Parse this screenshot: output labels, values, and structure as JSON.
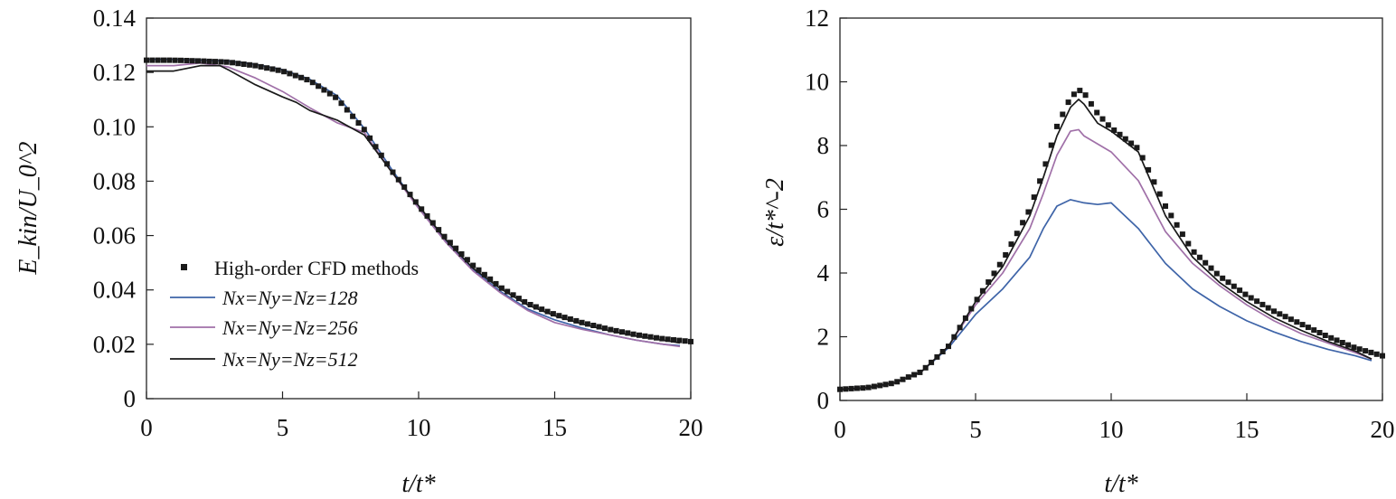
{
  "chart_data": [
    {
      "type": "line",
      "xlabel": "t/t*",
      "ylabel": "E_kin/U_0^2",
      "xlim": [
        0,
        20
      ],
      "ylim": [
        0,
        0.14
      ],
      "xticks": [
        "0",
        "5",
        "10",
        "15",
        "20"
      ],
      "yticks": [
        "0",
        "0.02",
        "0.04",
        "0.06",
        "0.08",
        "0.10",
        "0.12",
        "0.14"
      ],
      "grid": false,
      "legend_position": "lower-left",
      "series": [
        {
          "name": "High-order CFD methods",
          "marker": "square",
          "color": "#1a1a1a",
          "points": [
            [
              0,
              0.1245
            ],
            [
              1,
              0.1245
            ],
            [
              2,
              0.1242
            ],
            [
              3,
              0.1238
            ],
            [
              4,
              0.1225
            ],
            [
              5,
              0.1205
            ],
            [
              6,
              0.117
            ],
            [
              7,
              0.1105
            ],
            [
              8,
              0.099
            ],
            [
              9,
              0.084
            ],
            [
              10,
              0.071
            ],
            [
              11,
              0.059
            ],
            [
              12,
              0.049
            ],
            [
              13,
              0.041
            ],
            [
              14,
              0.035
            ],
            [
              15,
              0.031
            ],
            [
              16,
              0.028
            ],
            [
              17,
              0.0255
            ],
            [
              18,
              0.0235
            ],
            [
              19,
              0.022
            ],
            [
              20,
              0.021
            ]
          ]
        },
        {
          "name": "Nx=Ny=Nz=128",
          "color": "#3e64a8",
          "points": [
            [
              0,
              0.1248
            ],
            [
              1,
              0.1248
            ],
            [
              2,
              0.1245
            ],
            [
              3,
              0.1242
            ],
            [
              4,
              0.123
            ],
            [
              5,
              0.121
            ],
            [
              6,
              0.1175
            ],
            [
              7,
              0.1115
            ],
            [
              8,
              0.0995
            ],
            [
              9,
              0.0845
            ],
            [
              10,
              0.0705
            ],
            [
              11,
              0.058
            ],
            [
              12,
              0.0475
            ],
            [
              13,
              0.0395
            ],
            [
              14,
              0.033
            ],
            [
              15,
              0.029
            ],
            [
              16,
              0.026
            ],
            [
              17,
              0.0235
            ],
            [
              18,
              0.0215
            ],
            [
              19,
              0.02
            ],
            [
              19.6,
              0.0195
            ]
          ]
        },
        {
          "name": "Nx=Ny=Nz=256",
          "color": "#a070a8",
          "points": [
            [
              0,
              0.1225
            ],
            [
              1,
              0.1225
            ],
            [
              2,
              0.1235
            ],
            [
              3,
              0.122
            ],
            [
              4,
              0.118
            ],
            [
              5,
              0.113
            ],
            [
              6,
              0.107
            ],
            [
              7,
              0.1015
            ],
            [
              7.7,
              0.099
            ],
            [
              8,
              0.098
            ],
            [
              9,
              0.0835
            ],
            [
              10,
              0.07
            ],
            [
              11,
              0.0575
            ],
            [
              12,
              0.047
            ],
            [
              13,
              0.039
            ],
            [
              14,
              0.0325
            ],
            [
              15,
              0.028
            ],
            [
              16,
              0.0255
            ],
            [
              17,
              0.0235
            ],
            [
              18,
              0.0215
            ],
            [
              19,
              0.02
            ],
            [
              19.6,
              0.0192
            ]
          ]
        },
        {
          "name": "Nx=Ny=Nz=512",
          "color": "#1a1a1a",
          "points": [
            [
              0,
              0.1205
            ],
            [
              1,
              0.1205
            ],
            [
              2,
              0.1225
            ],
            [
              2.7,
              0.1225
            ],
            [
              3,
              0.121
            ],
            [
              4,
              0.1155
            ],
            [
              5,
              0.111
            ],
            [
              5.5,
              0.109
            ],
            [
              6,
              0.106
            ],
            [
              7,
              0.1025
            ],
            [
              8,
              0.097
            ],
            [
              9,
              0.0835
            ],
            [
              10,
              0.071
            ],
            [
              11,
              0.0585
            ],
            [
              12,
              0.048
            ],
            [
              13,
              0.0405
            ],
            [
              14,
              0.0345
            ],
            [
              15,
              0.0305
            ],
            [
              16,
              0.0275
            ],
            [
              17,
              0.025
            ],
            [
              18,
              0.023
            ],
            [
              19,
              0.0215
            ],
            [
              19.6,
              0.0205
            ]
          ]
        }
      ]
    },
    {
      "type": "line",
      "xlabel": "t/t*",
      "ylabel": "ε/t*^-2",
      "xlim": [
        0,
        20
      ],
      "ylim": [
        0,
        12
      ],
      "xticks": [
        "0",
        "5",
        "10",
        "15",
        "20"
      ],
      "yticks": [
        "0",
        "2",
        "4",
        "6",
        "8",
        "10",
        "12"
      ],
      "grid": false,
      "series": [
        {
          "name": "High-order CFD methods",
          "marker": "square",
          "color": "#1a1a1a",
          "points": [
            [
              0,
              0.35
            ],
            [
              1,
              0.4
            ],
            [
              2,
              0.55
            ],
            [
              3,
              0.9
            ],
            [
              4,
              1.7
            ],
            [
              5,
              3.1
            ],
            [
              6,
              4.4
            ],
            [
              7,
              6.0
            ],
            [
              7.5,
              7.2
            ],
            [
              8,
              8.6
            ],
            [
              8.5,
              9.5
            ],
            [
              8.8,
              9.75
            ],
            [
              9,
              9.65
            ],
            [
              9.5,
              9.0
            ],
            [
              10,
              8.55
            ],
            [
              11,
              7.9
            ],
            [
              12,
              6.1
            ],
            [
              13,
              4.7
            ],
            [
              14,
              3.9
            ],
            [
              15,
              3.3
            ],
            [
              16,
              2.8
            ],
            [
              17,
              2.4
            ],
            [
              18,
              2.0
            ],
            [
              19,
              1.65
            ],
            [
              20,
              1.4
            ]
          ]
        },
        {
          "name": "Nx=Ny=Nz=128",
          "color": "#3e64a8",
          "points": [
            [
              0,
              0.35
            ],
            [
              1,
              0.4
            ],
            [
              2,
              0.55
            ],
            [
              3,
              0.9
            ],
            [
              4,
              1.65
            ],
            [
              5,
              2.7
            ],
            [
              6,
              3.5
            ],
            [
              7,
              4.5
            ],
            [
              7.5,
              5.4
            ],
            [
              8,
              6.1
            ],
            [
              8.5,
              6.3
            ],
            [
              9,
              6.2
            ],
            [
              9.5,
              6.15
            ],
            [
              10,
              6.2
            ],
            [
              11,
              5.4
            ],
            [
              12,
              4.3
            ],
            [
              13,
              3.5
            ],
            [
              14,
              2.95
            ],
            [
              15,
              2.5
            ],
            [
              16,
              2.15
            ],
            [
              17,
              1.85
            ],
            [
              18,
              1.6
            ],
            [
              19,
              1.4
            ],
            [
              19.6,
              1.25
            ]
          ]
        },
        {
          "name": "Nx=Ny=Nz=256",
          "color": "#a070a8",
          "points": [
            [
              0,
              0.35
            ],
            [
              1,
              0.4
            ],
            [
              2,
              0.55
            ],
            [
              3,
              0.9
            ],
            [
              4,
              1.7
            ],
            [
              5,
              3.0
            ],
            [
              6,
              4.0
            ],
            [
              7,
              5.4
            ],
            [
              7.5,
              6.5
            ],
            [
              8,
              7.7
            ],
            [
              8.5,
              8.45
            ],
            [
              8.8,
              8.5
            ],
            [
              9,
              8.3
            ],
            [
              10,
              7.8
            ],
            [
              11,
              6.9
            ],
            [
              12,
              5.3
            ],
            [
              13,
              4.3
            ],
            [
              14,
              3.6
            ],
            [
              15,
              3.0
            ],
            [
              16,
              2.5
            ],
            [
              17,
              2.1
            ],
            [
              18,
              1.8
            ],
            [
              19,
              1.5
            ],
            [
              19.6,
              1.3
            ]
          ]
        },
        {
          "name": "Nx=Ny=Nz=512",
          "color": "#1a1a1a",
          "points": [
            [
              0,
              0.35
            ],
            [
              1,
              0.4
            ],
            [
              2,
              0.55
            ],
            [
              3,
              0.9
            ],
            [
              4,
              1.7
            ],
            [
              5,
              3.1
            ],
            [
              6,
              4.2
            ],
            [
              7,
              5.8
            ],
            [
              7.5,
              7.0
            ],
            [
              8,
              8.3
            ],
            [
              8.5,
              9.2
            ],
            [
              8.8,
              9.45
            ],
            [
              9,
              9.3
            ],
            [
              9.5,
              8.7
            ],
            [
              10,
              8.45
            ],
            [
              11,
              7.8
            ],
            [
              12,
              5.8
            ],
            [
              13,
              4.5
            ],
            [
              14,
              3.7
            ],
            [
              15,
              3.1
            ],
            [
              16,
              2.6
            ],
            [
              17,
              2.2
            ],
            [
              18,
              1.85
            ],
            [
              19,
              1.55
            ],
            [
              19.6,
              1.3
            ]
          ]
        }
      ]
    }
  ]
}
